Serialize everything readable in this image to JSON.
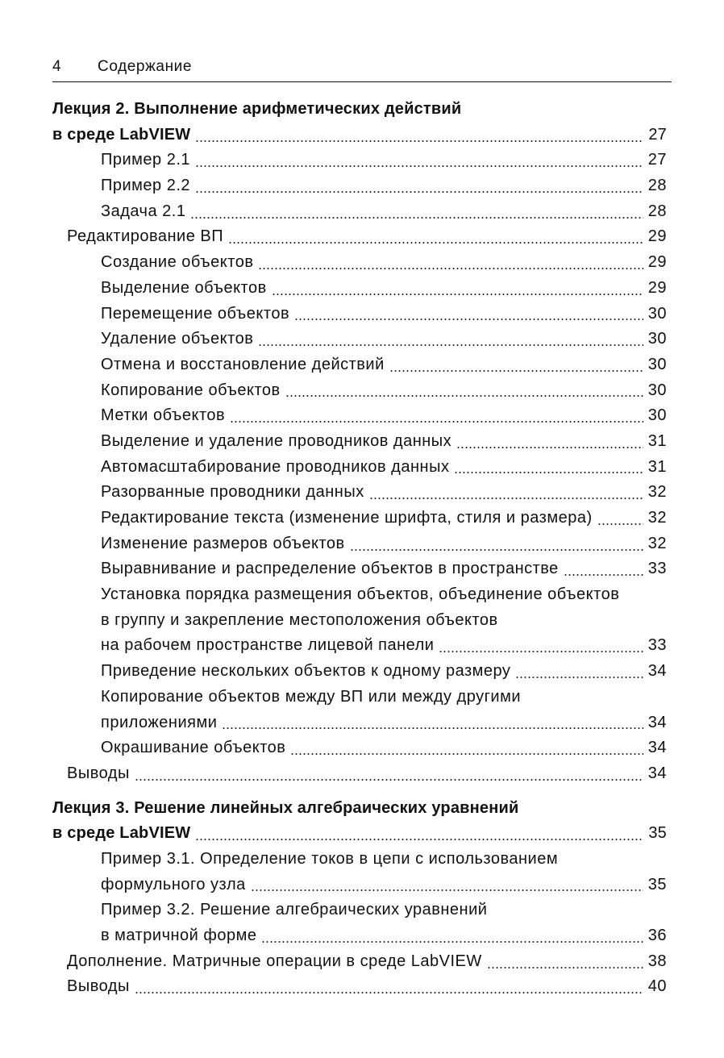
{
  "header": {
    "page_number": "4",
    "title": "Содержание"
  },
  "toc": [
    {
      "level": 0,
      "bold": true,
      "lines": [
        "Лекция 2. Выполнение арифметических действий",
        "в среде LabVIEW"
      ],
      "page": "27"
    },
    {
      "level": 2,
      "lines": [
        "Пример 2.1"
      ],
      "page": "27"
    },
    {
      "level": 2,
      "lines": [
        "Пример 2.2"
      ],
      "page": "28"
    },
    {
      "level": 2,
      "lines": [
        "Задача 2.1"
      ],
      "page": "28"
    },
    {
      "level": 1,
      "lines": [
        "Редактирование ВП"
      ],
      "page": "29"
    },
    {
      "level": 2,
      "lines": [
        "Создание объектов"
      ],
      "page": "29"
    },
    {
      "level": 2,
      "lines": [
        "Выделение объектов"
      ],
      "page": "29"
    },
    {
      "level": 2,
      "lines": [
        "Перемещение объектов"
      ],
      "page": "30"
    },
    {
      "level": 2,
      "lines": [
        "Удаление объектов"
      ],
      "page": "30"
    },
    {
      "level": 2,
      "lines": [
        "Отмена и восстановление действий"
      ],
      "page": "30"
    },
    {
      "level": 2,
      "lines": [
        "Копирование объектов"
      ],
      "page": "30"
    },
    {
      "level": 2,
      "lines": [
        "Метки объектов"
      ],
      "page": "30"
    },
    {
      "level": 2,
      "lines": [
        "Выделение и удаление проводников данных"
      ],
      "page": "31"
    },
    {
      "level": 2,
      "lines": [
        "Автомасштабирование проводников данных"
      ],
      "page": "31"
    },
    {
      "level": 2,
      "lines": [
        "Разорванные проводники данных"
      ],
      "page": "32"
    },
    {
      "level": 2,
      "lines": [
        "Редактирование текста (изменение шрифта, стиля и размера)"
      ],
      "page": "32"
    },
    {
      "level": 2,
      "lines": [
        "Изменение размеров объектов"
      ],
      "page": "32"
    },
    {
      "level": 2,
      "lines": [
        "Выравнивание и распределение объектов в пространстве"
      ],
      "page": "33"
    },
    {
      "level": 2,
      "lines": [
        "Установка порядка размещения объектов, объединение объектов",
        "в группу и закрепление местоположения объектов",
        "на рабочем пространстве лицевой панели"
      ],
      "page": "33"
    },
    {
      "level": 2,
      "lines": [
        "Приведение нескольких объектов к одному размеру"
      ],
      "page": "34"
    },
    {
      "level": 2,
      "lines": [
        "Копирование объектов между ВП или между другими",
        "приложениями"
      ],
      "page": "34"
    },
    {
      "level": 2,
      "lines": [
        "Окрашивание объектов"
      ],
      "page": "34"
    },
    {
      "level": 1,
      "lines": [
        "Выводы"
      ],
      "page": "34"
    },
    {
      "level": 0,
      "bold": true,
      "gap": true,
      "lines": [
        "Лекция 3. Решение линейных алгебраических уравнений",
        "в среде LabVIEW"
      ],
      "page": "35"
    },
    {
      "level": 2,
      "lines": [
        "Пример 3.1. Определение токов в цепи с использованием",
        "формульного узла"
      ],
      "page": "35"
    },
    {
      "level": 2,
      "lines": [
        "Пример 3.2. Решение алгебраических уравнений",
        "в матричной форме"
      ],
      "page": "36"
    },
    {
      "level": 1,
      "lines": [
        "Дополнение. Матричные операции в среде LabVIEW"
      ],
      "page": "38"
    },
    {
      "level": 1,
      "lines": [
        "Выводы"
      ],
      "page": "40"
    }
  ]
}
